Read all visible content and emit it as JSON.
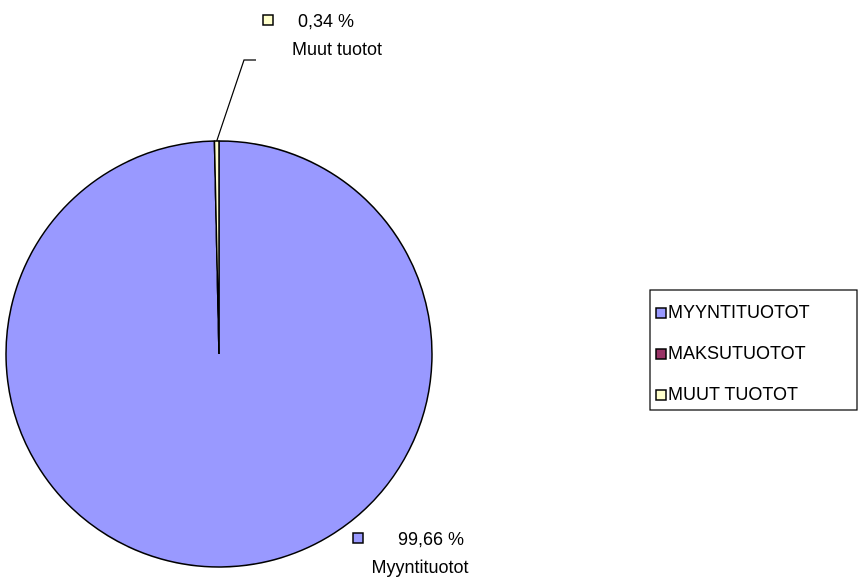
{
  "chart_data": {
    "type": "pie",
    "categories": [
      "MYYNTITUOTOT",
      "MAKSUTUOTOT",
      "MUUT TUOTOT"
    ],
    "values": [
      99.66,
      0,
      0.34
    ],
    "value_labels": [
      "99,66 %",
      null,
      "0,34 %"
    ],
    "data_label_names": [
      "Myyntituotot",
      null,
      "Muut tuotot"
    ],
    "colors": [
      "#9999ff",
      "#993366",
      "#ffffcc"
    ],
    "legend": "right"
  }
}
